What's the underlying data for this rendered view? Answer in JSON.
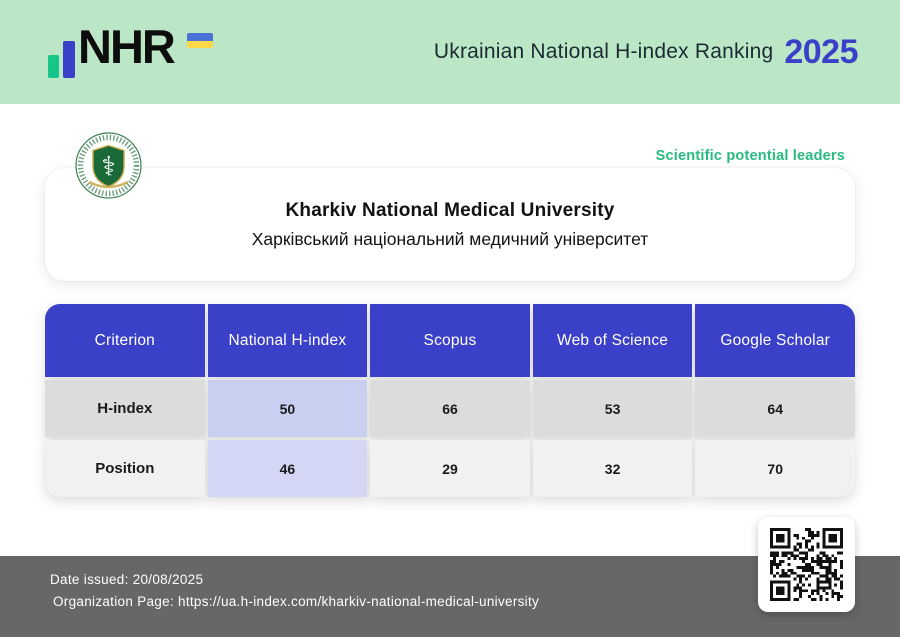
{
  "header": {
    "brand": "NHR",
    "title": "Ukrainian National H-index Ranking",
    "year": "2025"
  },
  "leader_badge": "Scientific potential leaders",
  "card": {
    "university_name_en": "Kharkiv National Medical University",
    "university_name_uk": "Харківський національний медичний університет"
  },
  "table": {
    "columns": [
      "Criterion",
      "National H-index",
      "Scopus",
      "Web of Science",
      "Google Scholar"
    ],
    "rows": [
      {
        "label": "H-index",
        "values": [
          "50",
          "66",
          "53",
          "64"
        ]
      },
      {
        "label": "Position",
        "values": [
          "46",
          "29",
          "32",
          "70"
        ]
      }
    ]
  },
  "footer": {
    "date_issued": "Date issued: 20/08/2025",
    "organization_page": "Organization Page: https://ua.h-index.com/kharkiv-national-medical-university"
  },
  "colors": {
    "header_bg": "#bce7c6",
    "accent_blue": "#3a41c8",
    "accent_green": "#27bb81",
    "accent_green_bright": "#17c489",
    "footer_bg": "#676767",
    "row_gray": "#dcdcdc",
    "row_light": "#f1f1f2",
    "highlight_col": "#c9cff1",
    "highlight_col_light": "#d3d7f5"
  }
}
